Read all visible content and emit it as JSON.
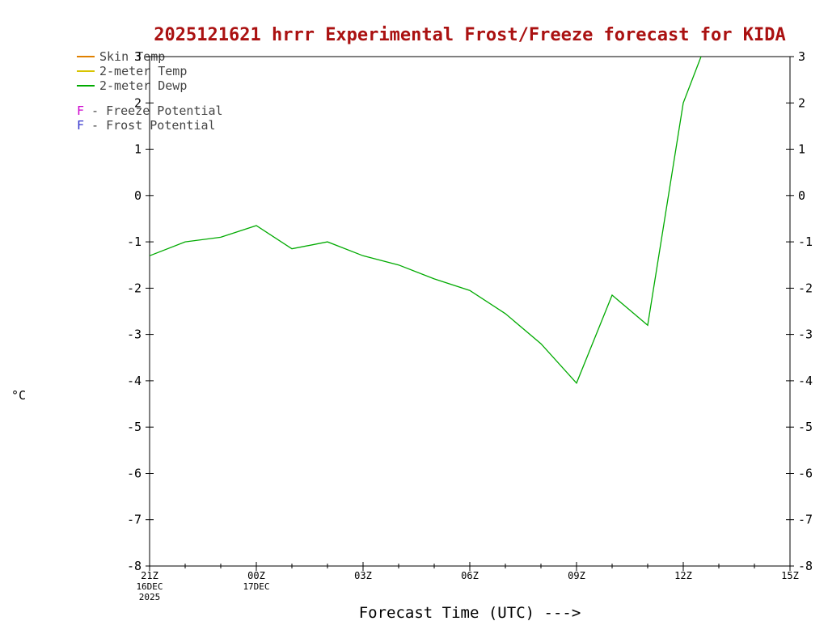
{
  "title": "2025121621 hrrr Experimental Frost/Freeze forecast for KIDA",
  "colors": {
    "title": "#aa1111",
    "legend_text": "#444444",
    "skin_temp": "#e08000",
    "temp_2m": "#d8c400",
    "dewp_2m": "#00aa00",
    "freeze_potential": "#cc00cc",
    "frost_potential": "#3333cc",
    "axis": "#000000",
    "background": "#ffffff"
  },
  "legend": {
    "series": [
      {
        "label": "Skin Temp",
        "color_key": "skin_temp"
      },
      {
        "label": "2-meter Temp",
        "color_key": "temp_2m"
      },
      {
        "label": "2-meter Dewp",
        "color_key": "dewp_2m"
      }
    ],
    "flags": [
      {
        "letter": "F",
        "label": "- Freeze Potential",
        "color_key": "freeze_potential"
      },
      {
        "letter": "F",
        "label": "- Frost Potential",
        "color_key": "frost_potential"
      }
    ]
  },
  "axes": {
    "y_label": "°C",
    "x_label": "Forecast Time (UTC) --->",
    "y_range": [
      -8,
      3
    ],
    "y_ticks": [
      3,
      2,
      1,
      0,
      -1,
      -2,
      -3,
      -4,
      -5,
      -6,
      -7,
      -8
    ],
    "x_range_hours": [
      0,
      18
    ],
    "x_ticks": [
      {
        "label": "21Z",
        "hour": 0
      },
      {
        "label": "00Z",
        "hour": 3
      },
      {
        "label": "03Z",
        "hour": 6
      },
      {
        "label": "06Z",
        "hour": 9
      },
      {
        "label": "09Z",
        "hour": 12
      },
      {
        "label": "12Z",
        "hour": 15
      },
      {
        "label": "15Z",
        "hour": 18
      }
    ],
    "x_sub_labels": [
      {
        "text": "16DEC",
        "hour": 0,
        "row": 0
      },
      {
        "text": "2025",
        "hour": 0,
        "row": 1
      },
      {
        "text": "17DEC",
        "hour": 3,
        "row": 0
      }
    ]
  },
  "chart_data": {
    "type": "line",
    "title": "2025121621 hrrr Experimental Frost/Freeze forecast for KIDA",
    "xlabel": "Forecast Time (UTC) --->",
    "ylabel": "°C",
    "ylim": [
      -8,
      3
    ],
    "x_unit": "hours after first tick (21Z 16DEC 2025)",
    "x_tick_labels": [
      "21Z",
      "00Z",
      "03Z",
      "06Z",
      "09Z",
      "12Z",
      "15Z"
    ],
    "grid": false,
    "legend_position": "top-left",
    "series": [
      {
        "name": "2-meter Dewp",
        "color_key": "dewp_2m",
        "points": [
          [
            0,
            -1.3
          ],
          [
            1,
            -1.0
          ],
          [
            2,
            -0.9
          ],
          [
            3,
            -0.65
          ],
          [
            4,
            -1.15
          ],
          [
            5,
            -1.0
          ],
          [
            6,
            -1.3
          ],
          [
            7,
            -1.5
          ],
          [
            8,
            -1.8
          ],
          [
            9,
            -2.05
          ],
          [
            10,
            -2.55
          ],
          [
            11,
            -3.2
          ],
          [
            12,
            -4.05
          ],
          [
            13,
            -2.15
          ],
          [
            14,
            -2.8
          ],
          [
            15,
            2.0
          ],
          [
            15.5,
            3.0
          ]
        ]
      }
    ]
  }
}
